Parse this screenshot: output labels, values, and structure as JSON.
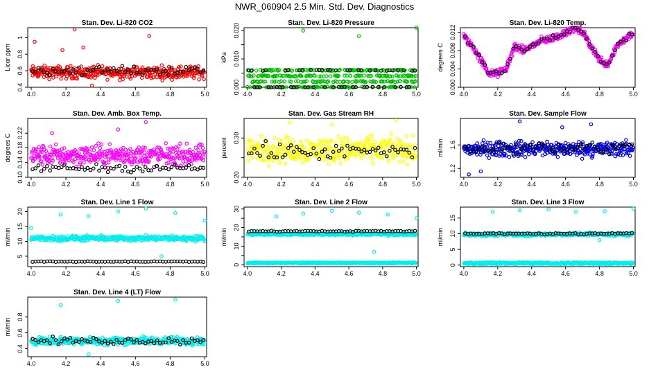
{
  "page": {
    "title": "NWR_060904  2.5 Min. Std. Dev. Diagnostics"
  },
  "chart_data": [
    {
      "type": "scatter",
      "title": "Stan. Dev. Li-820 CO2",
      "ylabel": "Licor ppm",
      "xlim": [
        3.98,
        5.01
      ],
      "ylim": [
        0.4,
        1.12
      ],
      "xticks": [
        4.0,
        4.2,
        4.4,
        4.6,
        4.8,
        5.0
      ],
      "yticks": [
        0.4,
        0.6,
        0.8,
        1.0
      ],
      "color": "#ff0000",
      "grid": false,
      "series": [
        {
          "base": 0.58,
          "spread": 0.07,
          "black_base": 0.6,
          "black_spread": 0.05
        },
        {
          "outliers": [
            [
              4.02,
              0.95
            ],
            [
              4.25,
              1.1
            ],
            [
              4.68,
              1.02
            ],
            [
              4.3,
              0.88
            ],
            [
              4.18,
              0.85
            ],
            [
              4.35,
              0.42
            ]
          ]
        }
      ]
    },
    {
      "type": "scatter",
      "title": "Stan. Dev. Li-820 Pressure",
      "ylabel": "kPa",
      "xlim": [
        3.98,
        5.01
      ],
      "ylim": [
        0.0,
        0.021
      ],
      "xticks": [
        4.0,
        4.2,
        4.4,
        4.6,
        4.8,
        5.0
      ],
      "yticks": [
        0.0,
        0.005,
        0.01,
        0.015,
        0.02
      ],
      "ytick_labels": [
        "0.000",
        "",
        "0.010",
        "",
        "0.020"
      ],
      "color": "#00c000",
      "grid": false,
      "series": [
        {
          "levels": [
            0.0,
            0.002,
            0.004,
            0.006
          ]
        },
        {
          "outliers": [
            [
              4.33,
              0.02
            ],
            [
              4.66,
              0.018
            ],
            [
              5.0,
              0.021
            ]
          ]
        }
      ]
    },
    {
      "type": "scatter",
      "title": "Stan. Dev. Li-820 Temp.",
      "ylabel": "degrees C",
      "xlim": [
        3.98,
        5.01
      ],
      "ylim": [
        0.0,
        0.013
      ],
      "xticks": [
        4.0,
        4.2,
        4.4,
        4.6,
        4.8,
        5.0
      ],
      "yticks": [
        0.0,
        0.004,
        0.008,
        0.012
      ],
      "ytick_labels": [
        "0.000",
        "0.004",
        "0.008",
        "0.012"
      ],
      "color": "#ff00ff",
      "grid": false,
      "series": [
        {
          "curve": [
            [
              4.0,
              0.011
            ],
            [
              4.05,
              0.009
            ],
            [
              4.1,
              0.006
            ],
            [
              4.15,
              0.003
            ],
            [
              4.2,
              0.003
            ],
            [
              4.25,
              0.004
            ],
            [
              4.3,
              0.009
            ],
            [
              4.35,
              0.008
            ],
            [
              4.45,
              0.01
            ],
            [
              4.55,
              0.011
            ],
            [
              4.65,
              0.013
            ],
            [
              4.7,
              0.012
            ],
            [
              4.75,
              0.009
            ],
            [
              4.8,
              0.006
            ],
            [
              4.85,
              0.005
            ],
            [
              4.9,
              0.009
            ],
            [
              5.0,
              0.012
            ]
          ]
        }
      ]
    },
    {
      "type": "scatter",
      "title": "Stan. Dev. Amb. Box Temp.",
      "ylabel": "degrees C",
      "xlim": [
        3.98,
        5.01
      ],
      "ylim": [
        0.1,
        0.26
      ],
      "xticks": [
        4.0,
        4.2,
        4.4,
        4.6,
        4.8,
        5.0
      ],
      "yticks": [
        0.1,
        0.14,
        0.18,
        0.22
      ],
      "ytick_labels": [
        "0.10",
        "0.14",
        "0.18",
        "0.22"
      ],
      "color": "#ff00ff",
      "grid": false,
      "series": [
        {
          "base": 0.16,
          "spread": 0.025,
          "black_base": 0.125,
          "black_spread": 0.01
        },
        {
          "outliers": [
            [
              4.66,
              0.25
            ],
            [
              4.5,
              0.23
            ],
            [
              4.12,
              0.22
            ]
          ]
        }
      ]
    },
    {
      "type": "scatter",
      "title": "Stan. Dev. Gas Stream RH",
      "ylabel": "percent",
      "xlim": [
        3.98,
        5.01
      ],
      "ylim": [
        0.2,
        0.35
      ],
      "xticks": [
        4.0,
        4.2,
        4.4,
        4.6,
        4.8,
        5.0
      ],
      "yticks": [
        0.2,
        0.25,
        0.3
      ],
      "ytick_labels": [
        "0.20",
        "",
        "0.30"
      ],
      "color": "#ffff00",
      "grid": false,
      "series": [
        {
          "base": 0.27,
          "spread": 0.03,
          "black_base": 0.265,
          "black_spread": 0.02
        },
        {
          "outliers": [
            [
              4.25,
              0.34
            ],
            [
              4.88,
              0.345
            ],
            [
              4.5,
              0.335
            ]
          ]
        }
      ]
    },
    {
      "type": "scatter",
      "title": "Stan. Dev. Sample Flow",
      "ylabel": "ml/min",
      "xlim": [
        3.98,
        5.01
      ],
      "ylim": [
        1.05,
        2.05
      ],
      "xticks": [
        4.0,
        4.2,
        4.4,
        4.6,
        4.8,
        5.0
      ],
      "yticks": [
        1.2,
        1.6
      ],
      "ytick_labels": [
        "1.2",
        "1.6"
      ],
      "color": "#0000dd",
      "grid": false,
      "series": [
        {
          "base": 1.53,
          "spread": 0.12,
          "black_base": 1.55,
          "black_spread": 0.12
        },
        {
          "outliers": [
            [
              4.33,
              2.0
            ],
            [
              4.75,
              1.95
            ],
            [
              4.03,
              1.1
            ],
            [
              4.1,
              1.15
            ],
            [
              4.58,
              1.9
            ]
          ]
        }
      ]
    },
    {
      "type": "scatter",
      "title": "Stan. Dev. Line 1 Flow",
      "ylabel": "ml/min",
      "xlim": [
        3.98,
        5.01
      ],
      "ylim": [
        1.5,
        21.5
      ],
      "xticks": [
        4.0,
        4.2,
        4.4,
        4.6,
        4.8,
        5.0
      ],
      "yticks": [
        5,
        10,
        15,
        20
      ],
      "ytick_labels": [
        "5",
        "10",
        "15",
        "20"
      ],
      "color": "#00eeee",
      "grid": false,
      "series": [
        {
          "base": 11,
          "spread": 0.8,
          "black_level": 3.2,
          "black_spread": 0.2
        },
        {
          "outliers": [
            [
              4.0,
              14.5
            ],
            [
              4.17,
              19
            ],
            [
              4.33,
              18.5
            ],
            [
              4.5,
              20
            ],
            [
              4.66,
              21
            ],
            [
              4.83,
              19.5
            ],
            [
              5.0,
              17
            ],
            [
              4.75,
              5
            ]
          ]
        }
      ]
    },
    {
      "type": "scatter",
      "title": "Stan. Dev. Line 2 Flow",
      "ylabel": "ml/min",
      "xlim": [
        3.98,
        5.01
      ],
      "ylim": [
        -1,
        31
      ],
      "xticks": [
        4.0,
        4.2,
        4.4,
        4.6,
        4.8,
        5.0
      ],
      "yticks": [
        0,
        5,
        10,
        15,
        20,
        25,
        30
      ],
      "ytick_labels": [
        "0",
        "",
        "10",
        "",
        "20",
        "",
        "30"
      ],
      "color": "#00eeee",
      "grid": false,
      "series": [
        {
          "base": 16.5,
          "spread": 0.6,
          "low_level": 1.0,
          "black_level": 18,
          "black_spread": 0.4
        },
        {
          "outliers": [
            [
              4.17,
              26
            ],
            [
              4.33,
              27.5
            ],
            [
              4.5,
              29
            ],
            [
              4.66,
              28
            ],
            [
              4.83,
              27
            ],
            [
              5.0,
              25
            ],
            [
              4.75,
              7
            ]
          ]
        }
      ]
    },
    {
      "type": "scatter",
      "title": "Stan. Dev. Line 3 Flow",
      "ylabel": "ml/min",
      "xlim": [
        3.98,
        5.01
      ],
      "ylim": [
        -0.5,
        18.5
      ],
      "xticks": [
        4.0,
        4.2,
        4.4,
        4.6,
        4.8,
        5.0
      ],
      "yticks": [
        0,
        5,
        10,
        15
      ],
      "ytick_labels": [
        "0",
        "5",
        "10",
        "15"
      ],
      "color": "#00eeee",
      "grid": false,
      "series": [
        {
          "base": 9.8,
          "spread": 0.5,
          "low_level": 0.6,
          "black_level": 10,
          "black_spread": 0.3
        },
        {
          "outliers": [
            [
              4.17,
              17
            ],
            [
              4.33,
              17.5
            ],
            [
              4.5,
              17.8
            ],
            [
              4.66,
              17
            ],
            [
              4.83,
              17.2
            ],
            [
              5.0,
              18
            ],
            [
              4.8,
              8
            ]
          ]
        }
      ]
    },
    {
      "type": "scatter",
      "title": "Stan. Dev. Line 4 (LT) Flow",
      "ylabel": "ml/min",
      "xlim": [
        3.98,
        5.01
      ],
      "ylim": [
        0.3,
        1.05
      ],
      "xticks": [
        4.0,
        4.2,
        4.4,
        4.6,
        4.8,
        5.0
      ],
      "yticks": [
        0.4,
        0.6,
        0.8
      ],
      "ytick_labels": [
        "0.4",
        "0.6",
        "0.8"
      ],
      "color": "#00eeee",
      "grid": false,
      "series": [
        {
          "base": 0.5,
          "spread": 0.045,
          "black_base": 0.5,
          "black_spread": 0.04
        },
        {
          "outliers": [
            [
              4.17,
              0.95
            ],
            [
              4.5,
              1.0
            ],
            [
              4.83,
              1.02
            ],
            [
              4.33,
              0.33
            ]
          ]
        }
      ]
    }
  ]
}
